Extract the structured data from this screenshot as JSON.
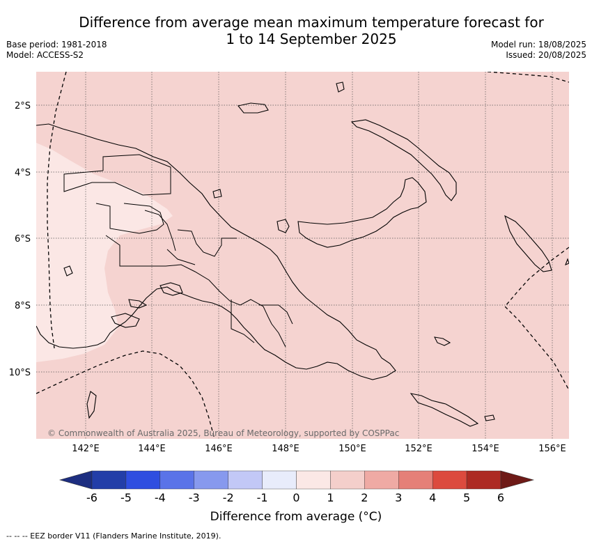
{
  "title": {
    "line1": "Difference from average mean maximum temperature forecast for",
    "line2": "1 to 14 September 2025"
  },
  "meta_left": {
    "base_period": "Base period: 1981-2018",
    "model": "Model: ACCESS-S2"
  },
  "meta_right": {
    "model_run": "Model run: 18/08/2025",
    "issued": "Issued: 20/08/2025"
  },
  "map": {
    "lat_labels": [
      "2°S",
      "4°S",
      "6°S",
      "8°S",
      "10°S"
    ],
    "lon_labels": [
      "142°E",
      "144°E",
      "146°E",
      "148°E",
      "150°E",
      "152°E",
      "154°E",
      "156°E"
    ],
    "copyright": "© Commonwealth of Australia 2025, Bureau of Meteorology, supported by COSPPac",
    "extent": {
      "lon": [
        140.5,
        156.5
      ],
      "lat": [
        -12,
        -1
      ]
    },
    "fill_colors": {
      "background": "#f5d3d0",
      "light_zone": "#fbe7e5"
    }
  },
  "colorbar": {
    "ticks": [
      "-6",
      "-5",
      "-4",
      "-3",
      "-2",
      "-1",
      "0",
      "1",
      "2",
      "3",
      "4",
      "5",
      "6"
    ],
    "colors": [
      "#233ea8",
      "#2f4ee0",
      "#5a73e8",
      "#8799ee",
      "#c2c8f6",
      "#e8ecfb",
      "#fbe8e6",
      "#f4cfcb",
      "#efaaa4",
      "#e58078",
      "#dc4a3e",
      "#ad2a23"
    ],
    "under_color": "#1d2e80",
    "over_color": "#6e1a17",
    "label": "Difference from average (°C)"
  },
  "footer": "--  --  -- EEZ border V11 (Flanders Marine Institute, 2019)."
}
